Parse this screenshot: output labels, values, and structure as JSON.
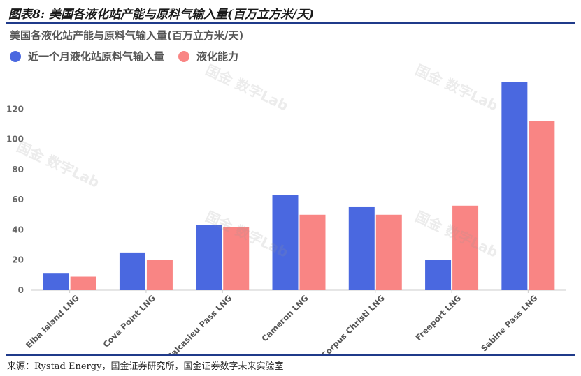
{
  "figure_title": "图表8:  美国各液化站产能与原料气输入量(百万立方米/天)",
  "source": "来源：Rystad Energy，国金证券研究所，国金证券数字未来实验室",
  "watermark": "国金 数字Lab",
  "colors": {
    "series1": "#4a68e0",
    "series2": "#f98584",
    "rule": "#1f3a8a"
  },
  "chart_data": {
    "type": "bar",
    "title": "美国各液化站产能与原料气输入量(百万立方米/天)",
    "categories": [
      "Elba Island LNG",
      "Cove Point LNG",
      "Calcasieu Pass LNG",
      "Cameron LNG",
      "Corpus Christi LNG",
      "Freeport LNG",
      "Sabine Pass LNG"
    ],
    "series": [
      {
        "name": "近一个月液化站原料气输入量",
        "values": [
          11,
          25,
          43,
          63,
          55,
          20,
          138
        ]
      },
      {
        "name": "液化能力",
        "values": [
          9,
          20,
          42,
          50,
          50,
          56,
          112
        ]
      }
    ],
    "yticks": [
      0,
      20,
      40,
      60,
      80,
      100,
      120
    ],
    "ylim": [
      0,
      140
    ],
    "legend_position": "top-left",
    "grid": false
  }
}
